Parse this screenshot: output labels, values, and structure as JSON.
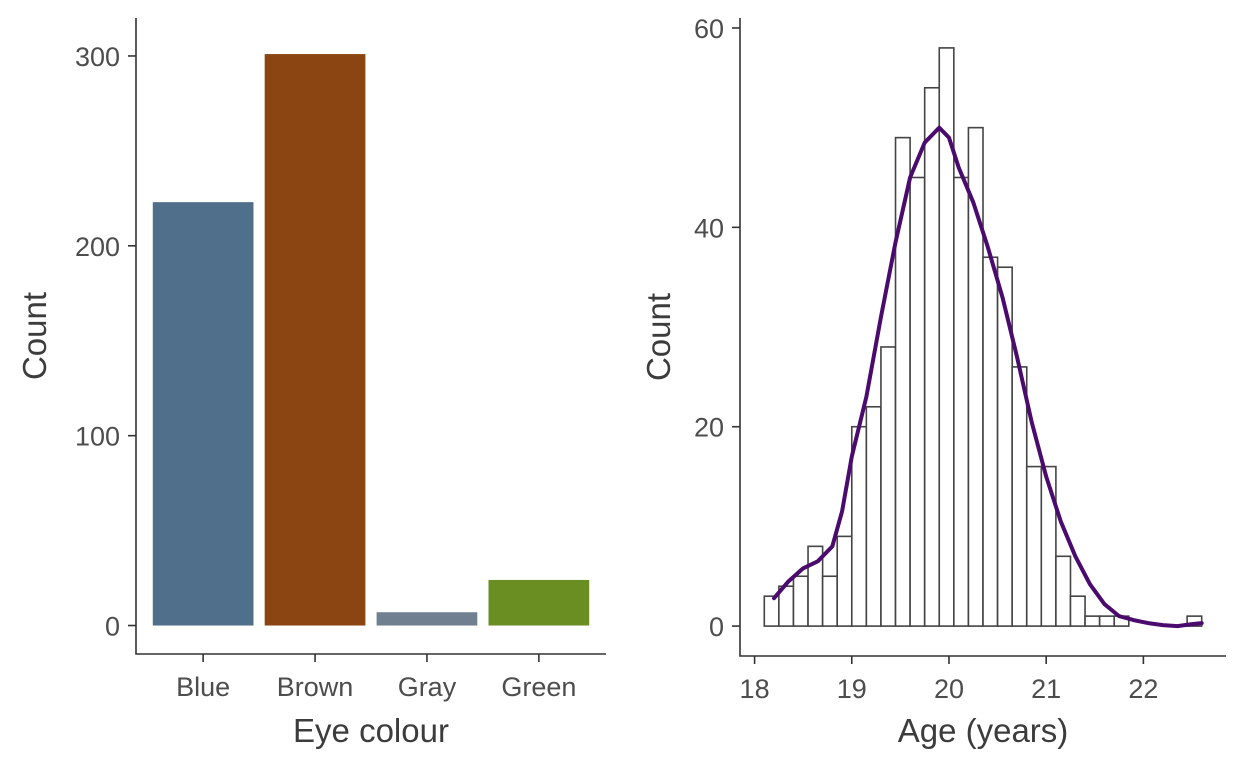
{
  "chart_data": [
    {
      "type": "bar",
      "xlabel": "Eye colour",
      "ylabel": "Count",
      "categories": [
        "Blue",
        "Brown",
        "Gray",
        "Green"
      ],
      "values": [
        223,
        301,
        7,
        24
      ],
      "colors": [
        "#4f6f8a",
        "#8b4513",
        "#708090",
        "#6b8e23"
      ],
      "ylim": [
        -15,
        320
      ],
      "yticks": [
        0,
        100,
        200,
        300
      ],
      "ytick_labels": [
        "0",
        "100",
        "200",
        "300"
      ],
      "grid": false
    },
    {
      "type": "histogram",
      "xlabel": "Age (years)",
      "ylabel": "Count",
      "bin_edges": [
        18.1,
        18.25,
        18.4,
        18.55,
        18.7,
        18.85,
        19.0,
        19.15,
        19.3,
        19.45,
        19.6,
        19.75,
        19.9,
        20.05,
        20.2,
        20.35,
        20.5,
        20.65,
        20.8,
        20.95,
        21.1,
        21.25,
        21.4,
        21.55,
        21.7,
        21.85,
        22.0,
        22.15,
        22.3,
        22.45,
        22.6
      ],
      "counts": [
        3,
        4,
        5,
        8,
        5,
        9,
        20,
        22,
        28,
        49,
        45,
        54,
        58,
        45,
        50,
        37,
        36,
        26,
        16,
        16,
        7,
        3,
        1,
        1,
        1,
        0,
        0,
        0,
        0,
        1
      ],
      "bar_fill": "#ffffff",
      "bar_outline": "#444444",
      "density_curve": {
        "color": "#4b0a6e",
        "points": [
          [
            18.2,
            2.8
          ],
          [
            18.35,
            4.5
          ],
          [
            18.5,
            5.8
          ],
          [
            18.65,
            6.5
          ],
          [
            18.8,
            8.0
          ],
          [
            18.9,
            11.5
          ],
          [
            19.0,
            17.0
          ],
          [
            19.15,
            23.0
          ],
          [
            19.3,
            31.0
          ],
          [
            19.45,
            38.5
          ],
          [
            19.6,
            45.0
          ],
          [
            19.75,
            48.5
          ],
          [
            19.9,
            50.0
          ],
          [
            20.0,
            49.0
          ],
          [
            20.1,
            46.0
          ],
          [
            20.25,
            42.5
          ],
          [
            20.4,
            38.0
          ],
          [
            20.55,
            33.0
          ],
          [
            20.7,
            27.0
          ],
          [
            20.85,
            20.5
          ],
          [
            21.0,
            15.0
          ],
          [
            21.15,
            10.5
          ],
          [
            21.3,
            7.0
          ],
          [
            21.45,
            4.2
          ],
          [
            21.6,
            2.2
          ],
          [
            21.75,
            1.0
          ],
          [
            21.9,
            0.6
          ],
          [
            22.05,
            0.3
          ],
          [
            22.2,
            0.1
          ],
          [
            22.35,
            0.0
          ],
          [
            22.5,
            0.2
          ],
          [
            22.6,
            0.3
          ]
        ]
      },
      "xlim": [
        17.85,
        22.85
      ],
      "xticks": [
        18,
        19,
        20,
        21,
        22
      ],
      "xtick_labels": [
        "18",
        "19",
        "20",
        "21",
        "22"
      ],
      "ylim": [
        -3,
        61
      ],
      "yticks": [
        0,
        20,
        40,
        60
      ],
      "ytick_labels": [
        "0",
        "20",
        "40",
        "60"
      ],
      "grid": false
    }
  ]
}
